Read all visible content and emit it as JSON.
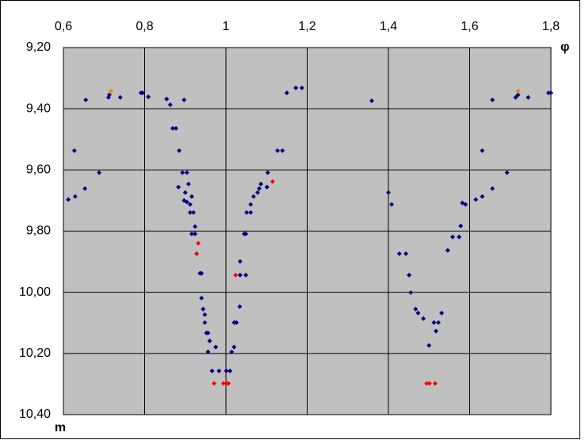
{
  "chart_data": {
    "type": "scatter",
    "x_label": "φ",
    "y_label": "m",
    "xlim": [
      0.6,
      1.8
    ],
    "xticks": [
      {
        "value": 0.6,
        "label": "0,6"
      },
      {
        "value": 0.8,
        "label": "0,8"
      },
      1,
      {
        "value": 1.2,
        "label": "1,2"
      },
      {
        "value": 1.4,
        "label": "1,4"
      },
      {
        "value": 1.6,
        "label": "1,6"
      },
      {
        "value": 1.8,
        "label": "1,8"
      }
    ],
    "ylim": [
      9.2,
      10.4
    ],
    "y_inverted": true,
    "yticks": [
      {
        "value": 9.2,
        "label": "9,20"
      },
      {
        "value": 9.4,
        "label": "9,40"
      },
      {
        "value": 9.6,
        "label": "9,60"
      },
      {
        "value": 9.8,
        "label": "9,80"
      },
      {
        "value": 10.0,
        "label": "10,00"
      },
      {
        "value": 10.2,
        "label": "10,20"
      },
      {
        "value": 10.4,
        "label": "10,40"
      }
    ],
    "grid": true,
    "plot_background": "#c0c0c0",
    "series": [
      {
        "color": "#000080",
        "x": [
          0.612,
          0.629,
          0.627,
          0.653,
          0.655,
          0.688,
          0.711,
          0.713,
          0.74,
          0.791,
          0.795,
          0.809,
          0.854,
          0.863,
          0.869,
          0.877,
          0.885,
          0.897,
          0.883,
          0.893,
          0.904,
          0.9,
          0.897,
          0.904,
          0.912,
          0.908,
          0.916,
          0.912,
          0.92,
          0.916,
          0.924,
          0.924,
          0.928,
          0.936,
          0.94,
          0.94,
          0.944,
          0.948,
          0.948,
          0.956,
          0.952,
          0.96,
          0.956,
          0.966,
          0.975,
          0.983,
          1.001,
          1.01,
          1.014,
          1.02,
          1.02,
          1.026,
          1.034,
          1.035,
          1.035,
          1.049,
          1.045,
          1.049,
          1.051,
          1.061,
          1.061,
          1.068,
          1.078,
          1.082,
          1.086,
          1.101,
          1.103,
          1.127,
          1.139,
          1.15,
          1.172,
          1.187,
          1.359,
          1.4,
          1.408,
          1.427,
          1.443,
          1.451,
          1.455,
          1.467,
          1.473,
          1.486,
          1.5,
          1.512,
          1.517,
          1.523,
          1.531,
          1.546,
          1.558,
          1.574,
          1.578,
          1.582,
          1.59,
          1.615,
          1.631,
          1.631,
          1.656,
          1.656,
          1.692,
          1.713,
          1.719,
          1.744,
          1.794,
          1.8
        ],
        "values": [
          9.697,
          9.687,
          9.537,
          9.661,
          9.371,
          9.609,
          9.363,
          9.355,
          9.363,
          9.348,
          9.348,
          9.361,
          9.368,
          9.387,
          9.464,
          9.464,
          9.537,
          9.371,
          9.656,
          9.609,
          9.609,
          9.674,
          9.7,
          9.705,
          9.713,
          9.646,
          9.687,
          9.739,
          9.739,
          9.809,
          9.809,
          9.785,
          9.874,
          9.938,
          9.938,
          10.019,
          10.055,
          10.073,
          10.099,
          10.133,
          10.133,
          10.159,
          10.195,
          10.257,
          10.179,
          10.257,
          10.257,
          10.257,
          10.195,
          10.179,
          10.099,
          10.099,
          10.047,
          9.899,
          9.944,
          9.944,
          9.809,
          9.809,
          9.739,
          9.739,
          9.713,
          9.687,
          9.674,
          9.661,
          9.646,
          9.656,
          9.609,
          9.537,
          9.537,
          9.348,
          9.332,
          9.332,
          9.374,
          9.674,
          9.713,
          9.874,
          9.874,
          9.944,
          10.001,
          10.055,
          10.068,
          10.086,
          10.174,
          10.099,
          10.127,
          10.099,
          10.068,
          9.863,
          9.819,
          9.819,
          9.783,
          9.708,
          9.713,
          9.697,
          9.687,
          9.537,
          9.661,
          9.371,
          9.609,
          9.363,
          9.355,
          9.363,
          9.348,
          9.348
        ]
      },
      {
        "color": "#ff0000",
        "x": [
          0.971,
          0.994,
          1.001,
          1.006,
          0.932,
          0.928,
          1.024,
          1.115,
          1.494,
          1.501,
          1.515
        ],
        "values": [
          10.298,
          10.298,
          10.298,
          10.298,
          9.84,
          9.874,
          9.944,
          9.638,
          10.298,
          10.298,
          10.298
        ]
      },
      {
        "color": "#ff8000",
        "x": [
          0.717,
          1.719
        ],
        "values": [
          9.342,
          9.342
        ]
      }
    ]
  }
}
